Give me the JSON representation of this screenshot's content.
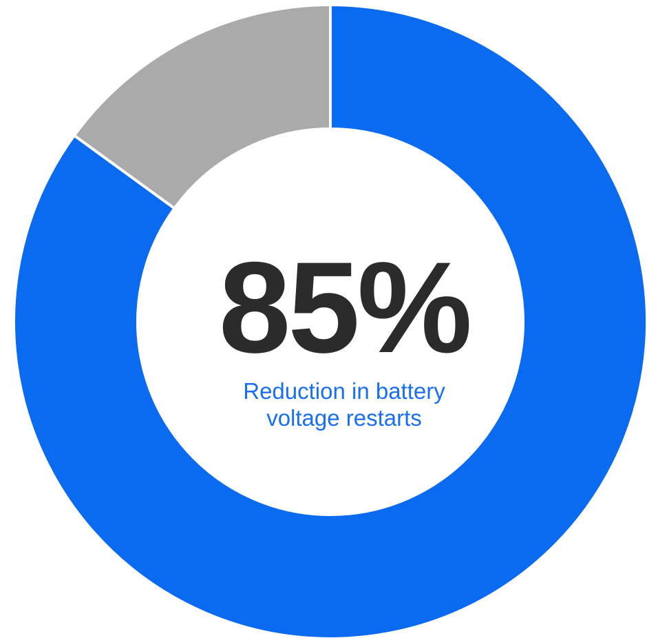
{
  "chart_data": {
    "type": "pie",
    "variant": "donut",
    "slices": [
      {
        "name": "",
        "value": 85,
        "color": "#0a6af0"
      },
      {
        "name": "",
        "value": 15,
        "color": "#aaaaaa"
      }
    ],
    "center_value": "85%",
    "center_label": "Reduction in battery voltage restarts",
    "title": "",
    "legend": "none"
  }
}
